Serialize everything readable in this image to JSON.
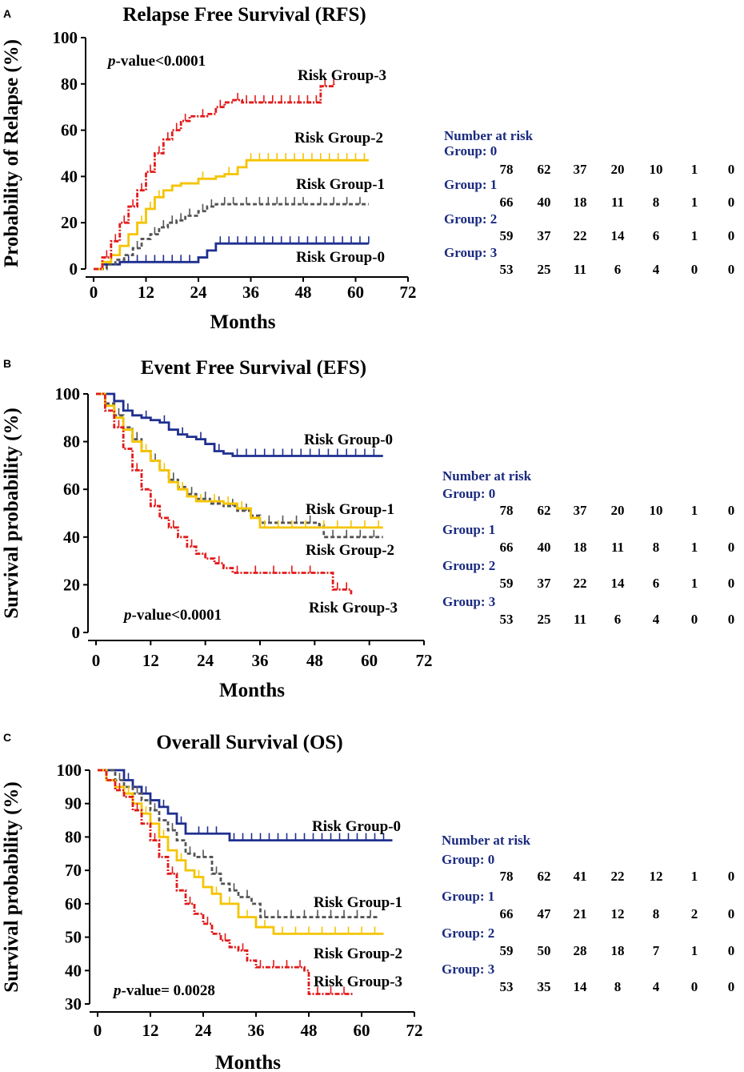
{
  "colors": {
    "group0": "#1f2f8f",
    "group1": "#555555",
    "group2": "#f5c400",
    "group3": "#e21a1a",
    "risk_header": "#1a2a80",
    "axis": "#000000"
  },
  "x_ticks": [
    "0",
    "12",
    "24",
    "36",
    "48",
    "60",
    "72"
  ],
  "chart_data": [
    {
      "type": "line",
      "panel_letter": "A",
      "title": "Relapse Free Survival (RFS)",
      "xlabel": "Months",
      "ylabel": "Probability of Relapse (%)",
      "xlim": [
        0,
        72
      ],
      "ylim": [
        0,
        100
      ],
      "y_ticks": [
        "0",
        "20",
        "40",
        "60",
        "80",
        "100"
      ],
      "p_value": {
        "prefix": "p",
        "text": "-value<0.0001"
      },
      "series": [
        {
          "name": "Risk Group-0",
          "label": "Risk Group-0",
          "color_key": "group0",
          "dash": "",
          "x": [
            0,
            2,
            4,
            6,
            15,
            22,
            24,
            26,
            28,
            63
          ],
          "y": [
            0,
            2,
            2,
            3,
            3,
            3,
            5,
            8,
            11,
            11
          ],
          "censor_x": [
            8,
            10,
            12,
            14,
            16,
            18,
            20,
            22,
            29,
            31,
            33,
            35,
            37,
            39,
            41,
            43,
            45,
            47,
            49,
            51,
            53,
            55,
            57,
            59,
            61,
            63
          ]
        },
        {
          "name": "Risk Group-1",
          "label": "Risk Group-1",
          "color_key": "group1",
          "dash": "5,3",
          "x": [
            0,
            3,
            5,
            7,
            9,
            11,
            13,
            15,
            17,
            19,
            21,
            24,
            26,
            28,
            63
          ],
          "y": [
            0,
            2,
            4,
            6,
            9,
            13,
            15,
            18,
            20,
            21,
            23,
            25,
            27,
            28,
            28
          ],
          "censor_x": [
            10,
            14,
            16,
            18,
            20,
            22,
            25,
            27,
            30,
            32,
            35,
            38,
            40,
            42,
            44,
            46,
            48,
            52,
            55,
            58,
            61
          ]
        },
        {
          "name": "Risk Group-2",
          "label": "Risk Group-2",
          "color_key": "group2",
          "dash": "",
          "x": [
            0,
            2,
            4,
            6,
            8,
            10,
            12,
            14,
            16,
            18,
            20,
            24,
            28,
            30,
            33,
            35,
            63
          ],
          "y": [
            0,
            3,
            6,
            10,
            15,
            20,
            26,
            31,
            34,
            36,
            37,
            39,
            40,
            41,
            44,
            47,
            47
          ],
          "censor_x": [
            11,
            13,
            15,
            25,
            31,
            36,
            38,
            40,
            42,
            44,
            46,
            48,
            50,
            52,
            54,
            56,
            58,
            60,
            62
          ]
        },
        {
          "name": "Risk Group-3",
          "label": "Risk Group-3",
          "color_key": "group3",
          "dash": "6,2,2,2",
          "x": [
            0,
            2,
            4,
            6,
            8,
            10,
            12,
            14,
            16,
            18,
            20,
            22,
            24,
            26,
            28,
            30,
            32,
            34,
            50,
            52,
            55
          ],
          "y": [
            0,
            5,
            12,
            20,
            27,
            34,
            42,
            50,
            56,
            60,
            64,
            66,
            66,
            67,
            70,
            72,
            73,
            72,
            72,
            79,
            80
          ],
          "censor_x": [
            3,
            5,
            7,
            9,
            11,
            13,
            15,
            17,
            19,
            21,
            25,
            29,
            33,
            35,
            37,
            39,
            41,
            43,
            45,
            47,
            49,
            51,
            53,
            55
          ]
        }
      ],
      "risk_table": {
        "header": "Number at risk",
        "groups": [
          {
            "label": "Group: 0",
            "counts": [
              "78",
              "62",
              "37",
              "20",
              "10",
              "1",
              "0"
            ]
          },
          {
            "label": "Group: 1",
            "counts": [
              "66",
              "40",
              "18",
              "11",
              "8",
              "1",
              "0"
            ]
          },
          {
            "label": "Group: 2",
            "counts": [
              "59",
              "37",
              "22",
              "14",
              "6",
              "1",
              "0"
            ]
          },
          {
            "label": "Group: 3",
            "counts": [
              "53",
              "25",
              "11",
              "6",
              "4",
              "0",
              "0"
            ]
          }
        ]
      }
    },
    {
      "type": "line",
      "panel_letter": "B",
      "title": "Event Free Survival (EFS)",
      "xlabel": "Months",
      "ylabel": "Survival probability (%)",
      "xlim": [
        0,
        72
      ],
      "ylim": [
        0,
        100
      ],
      "y_ticks": [
        "0",
        "20",
        "40",
        "60",
        "80",
        "100"
      ],
      "p_value": {
        "prefix": "p",
        "text": "-value<0.0001"
      },
      "series": [
        {
          "name": "Risk Group-0",
          "label": "Risk Group-0",
          "color_key": "group0",
          "dash": "",
          "x": [
            0,
            4,
            6,
            8,
            10,
            12,
            14,
            16,
            18,
            20,
            22,
            24,
            26,
            28,
            30,
            63
          ],
          "y": [
            100,
            97,
            93,
            91,
            90,
            89,
            88,
            85,
            83,
            82,
            81,
            79,
            76,
            75,
            74,
            74
          ],
          "censor_x": [
            7,
            11,
            15,
            19,
            23,
            27,
            31,
            33,
            35,
            37,
            39,
            41,
            43,
            45,
            47,
            49,
            51,
            53,
            55,
            57,
            59,
            61
          ]
        },
        {
          "name": "Risk Group-1",
          "label": "Risk Group-1",
          "color_key": "group1",
          "dash": "5,3",
          "x": [
            0,
            2,
            4,
            6,
            8,
            10,
            12,
            14,
            16,
            18,
            20,
            22,
            25,
            28,
            31,
            34,
            36,
            49,
            50,
            63
          ],
          "y": [
            100,
            96,
            91,
            86,
            81,
            76,
            72,
            68,
            64,
            61,
            58,
            56,
            54,
            53,
            51,
            49,
            46,
            45,
            40,
            40
          ],
          "censor_x": [
            5,
            9,
            13,
            17,
            21,
            24,
            27,
            30,
            33,
            38,
            41,
            44,
            47,
            52,
            55,
            58,
            61
          ]
        },
        {
          "name": "Risk Group-2",
          "label": "Risk Group-2",
          "color_key": "group2",
          "dash": "",
          "x": [
            0,
            2,
            4,
            6,
            8,
            10,
            12,
            14,
            16,
            18,
            20,
            22,
            25,
            28,
            31,
            34,
            36,
            63
          ],
          "y": [
            100,
            95,
            90,
            85,
            80,
            76,
            72,
            68,
            63,
            60,
            57,
            55,
            55,
            54,
            52,
            48,
            44,
            44
          ],
          "censor_x": [
            11,
            15,
            19,
            23,
            26,
            29,
            32,
            37,
            40,
            43,
            46,
            50,
            53,
            56,
            59,
            62
          ]
        },
        {
          "name": "Risk Group-3",
          "label": "Risk Group-3",
          "color_key": "group3",
          "dash": "6,2,2,2",
          "x": [
            0,
            2,
            4,
            6,
            8,
            10,
            12,
            14,
            16,
            18,
            20,
            22,
            24,
            26,
            28,
            30,
            50,
            52,
            56
          ],
          "y": [
            100,
            93,
            86,
            77,
            68,
            60,
            53,
            48,
            44,
            40,
            36,
            33,
            31,
            29,
            27,
            25,
            25,
            18,
            16
          ],
          "censor_x": [
            5,
            9,
            13,
            17,
            21,
            27,
            31,
            35,
            39,
            43,
            47,
            53,
            55
          ]
        }
      ],
      "series_labels_override": {
        "Risk Group-1": "Risk Group-1",
        "Risk Group-2": "Risk Group-2"
      },
      "risk_table": {
        "header": "Number at risk",
        "groups": [
          {
            "label": "Group: 0",
            "counts": [
              "78",
              "62",
              "37",
              "20",
              "10",
              "1",
              "0"
            ]
          },
          {
            "label": "Group: 1",
            "counts": [
              "66",
              "40",
              "18",
              "11",
              "8",
              "1",
              "0"
            ]
          },
          {
            "label": "Group: 2",
            "counts": [
              "59",
              "37",
              "22",
              "14",
              "6",
              "1",
              "0"
            ]
          },
          {
            "label": "Group: 3",
            "counts": [
              "53",
              "25",
              "11",
              "6",
              "4",
              "0",
              "0"
            ]
          }
        ]
      }
    },
    {
      "type": "line",
      "panel_letter": "C",
      "title": "Overall Survival (OS)",
      "xlabel": "Months",
      "ylabel": "Survival probability (%)",
      "xlim": [
        0,
        72
      ],
      "ylim": [
        30,
        100
      ],
      "y_ticks": [
        "30",
        "40",
        "50",
        "60",
        "70",
        "80",
        "90",
        "100"
      ],
      "p_value": {
        "prefix": "p",
        "text": "-value= 0.0028"
      },
      "series": [
        {
          "name": "Risk Group-0",
          "label": "Risk Group-0",
          "color_key": "group0",
          "dash": "",
          "x": [
            0,
            6,
            8,
            10,
            12,
            14,
            16,
            18,
            20,
            22,
            28,
            30,
            67
          ],
          "y": [
            100,
            97,
            95,
            93,
            91,
            89,
            87,
            84,
            81,
            81,
            81,
            79,
            79
          ],
          "censor_x": [
            7,
            11,
            15,
            19,
            23,
            25,
            27,
            31,
            33,
            35,
            37,
            39,
            41,
            43,
            45,
            47,
            49,
            51,
            53,
            55,
            57,
            59,
            61,
            63,
            65
          ]
        },
        {
          "name": "Risk Group-1",
          "label": "Risk Group-1",
          "color_key": "group1",
          "dash": "5,3",
          "x": [
            0,
            4,
            6,
            8,
            10,
            12,
            14,
            16,
            18,
            20,
            22,
            26,
            28,
            30,
            32,
            35,
            37,
            64
          ],
          "y": [
            100,
            97,
            95,
            93,
            91,
            88,
            85,
            82,
            79,
            75,
            74,
            69,
            66,
            64,
            62,
            60,
            56,
            56
          ],
          "censor_x": [
            5,
            9,
            13,
            17,
            21,
            24,
            27,
            31,
            34,
            38,
            41,
            44,
            47,
            50,
            53,
            56,
            59,
            62
          ]
        },
        {
          "name": "Risk Group-2",
          "label": "Risk Group-2",
          "color_key": "group2",
          "dash": "",
          "x": [
            0,
            2,
            4,
            6,
            8,
            10,
            12,
            14,
            16,
            18,
            20,
            22,
            24,
            26,
            28,
            32,
            36,
            40,
            65
          ],
          "y": [
            100,
            97,
            95,
            93,
            90,
            87,
            84,
            80,
            76,
            73,
            70,
            68,
            65,
            63,
            60,
            56,
            53,
            51,
            51
          ],
          "censor_x": [
            7,
            11,
            15,
            19,
            23,
            27,
            30,
            34,
            38,
            42,
            45,
            48,
            51,
            54,
            57,
            60,
            63
          ]
        },
        {
          "name": "Risk Group-3",
          "label": "Risk Group-3",
          "color_key": "group3",
          "dash": "6,2,2,2",
          "x": [
            0,
            2,
            4,
            6,
            8,
            10,
            12,
            14,
            16,
            18,
            20,
            22,
            24,
            26,
            28,
            30,
            32,
            34,
            36,
            47,
            48,
            58
          ],
          "y": [
            100,
            97,
            94,
            92,
            88,
            84,
            79,
            74,
            69,
            64,
            60,
            57,
            54,
            51,
            49,
            47,
            46,
            43,
            41,
            40,
            33,
            33
          ],
          "censor_x": [
            5,
            9,
            13,
            17,
            21,
            25,
            29,
            33,
            37,
            40,
            43,
            46,
            50,
            53,
            56
          ]
        }
      ],
      "risk_table": {
        "header": "Number at risk",
        "groups": [
          {
            "label": "Group: 0",
            "counts": [
              "78",
              "62",
              "41",
              "22",
              "12",
              "1",
              "0"
            ]
          },
          {
            "label": "Group: 1",
            "counts": [
              "66",
              "47",
              "21",
              "12",
              "8",
              "2",
              "0"
            ]
          },
          {
            "label": "Group: 2",
            "counts": [
              "59",
              "50",
              "28",
              "18",
              "7",
              "1",
              "0"
            ]
          },
          {
            "label": "Group: 3",
            "counts": [
              "53",
              "35",
              "14",
              "8",
              "4",
              "0",
              "0"
            ]
          }
        ]
      }
    }
  ]
}
